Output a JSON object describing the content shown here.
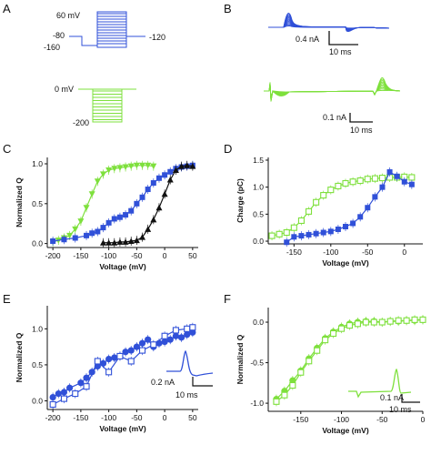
{
  "panels": {
    "A": {
      "label": "A",
      "blue": {
        "color": "#3050d8",
        "labels": [
          "60 mV",
          "-80",
          "-120",
          "-160"
        ]
      },
      "green": {
        "color": "#7ee03c",
        "labels": [
          "0 mV",
          "-200"
        ]
      }
    },
    "B": {
      "label": "B",
      "blue_scale": {
        "current": "0.4 nA",
        "time": "10 ms"
      },
      "green_scale": {
        "current": "0.1 nA",
        "time": "10 ms"
      }
    },
    "C": {
      "label": "C"
    },
    "D": {
      "label": "D"
    },
    "E": {
      "label": "E",
      "inset": {
        "current": "0.2 nA",
        "time": "10 ms"
      }
    },
    "F": {
      "label": "F",
      "inset": {
        "current": "0.1 nA",
        "time": "10 ms"
      }
    }
  },
  "colors": {
    "blue": "#3050d8",
    "green": "#7ee03c",
    "black": "#111111"
  },
  "chart_data": [
    {
      "id": "C",
      "type": "scatter",
      "xlabel": "Voltage (mV)",
      "ylabel": "Normalized Q",
      "xlim": [
        -210,
        60
      ],
      "ylim": [
        -0.05,
        1.08
      ],
      "xticks": [
        -200,
        -150,
        -100,
        -50,
        0,
        50
      ],
      "yticks": [
        0.0,
        0.5,
        1.0
      ],
      "xtick_labels": [
        "-200",
        "-150",
        "-100",
        "-50",
        "0",
        "50"
      ],
      "ytick_labels": [
        "0.0",
        "0.5",
        "1.0"
      ],
      "series": [
        {
          "color": "#7ee03c",
          "marker": "triangle-down",
          "x": [
            -200,
            -190,
            -180,
            -170,
            -160,
            -150,
            -140,
            -130,
            -120,
            -110,
            -100,
            -90,
            -80,
            -70,
            -60,
            -50,
            -40,
            -30,
            -20
          ],
          "y": [
            0.02,
            0.04,
            0.07,
            0.1,
            0.18,
            0.28,
            0.45,
            0.62,
            0.78,
            0.87,
            0.92,
            0.94,
            0.95,
            0.96,
            0.97,
            0.98,
            0.98,
            0.98,
            0.97
          ]
        },
        {
          "color": "#3050d8",
          "marker": "square",
          "x": [
            -200,
            -180,
            -160,
            -140,
            -130,
            -120,
            -110,
            -100,
            -90,
            -80,
            -70,
            -60,
            -50,
            -40,
            -30,
            -20,
            -10,
            0,
            10,
            20,
            30,
            40,
            50
          ],
          "y": [
            0.03,
            0.05,
            0.07,
            0.1,
            0.13,
            0.15,
            0.2,
            0.26,
            0.31,
            0.33,
            0.36,
            0.41,
            0.5,
            0.58,
            0.68,
            0.76,
            0.82,
            0.86,
            0.9,
            0.94,
            0.96,
            0.97,
            0.98
          ]
        },
        {
          "color": "#111111",
          "marker": "triangle-up",
          "x": [
            -110,
            -100,
            -90,
            -80,
            -70,
            -60,
            -50,
            -40,
            -30,
            -20,
            -10,
            0,
            10,
            20,
            30,
            40,
            50
          ],
          "y": [
            0.01,
            0.01,
            0.01,
            0.02,
            0.02,
            0.03,
            0.04,
            0.08,
            0.18,
            0.3,
            0.45,
            0.62,
            0.8,
            0.92,
            0.97,
            0.98,
            0.97
          ]
        }
      ]
    },
    {
      "id": "D",
      "type": "scatter",
      "xlabel": "Voltage (mV)",
      "ylabel": "Charge (pC)",
      "xlim": [
        -185,
        25
      ],
      "ylim": [
        -0.05,
        1.55
      ],
      "xticks": [
        -150,
        -100,
        -50,
        0
      ],
      "yticks": [
        0.0,
        0.5,
        1.0,
        1.5
      ],
      "xtick_labels": [
        "-150",
        "-100",
        "-50",
        "0"
      ],
      "ytick_labels": [
        "0.0",
        "0.5",
        "1.0",
        "1.5"
      ],
      "series": [
        {
          "color": "#7ee03c",
          "marker": "square-open",
          "x": [
            -180,
            -170,
            -160,
            -150,
            -140,
            -130,
            -120,
            -110,
            -100,
            -90,
            -80,
            -70,
            -60,
            -50,
            -40,
            -30,
            -20,
            -10,
            0,
            10
          ],
          "y": [
            0.1,
            0.13,
            0.16,
            0.25,
            0.38,
            0.55,
            0.72,
            0.85,
            0.95,
            1.02,
            1.07,
            1.1,
            1.12,
            1.15,
            1.16,
            1.17,
            1.18,
            1.18,
            1.19,
            1.18
          ]
        },
        {
          "color": "#3050d8",
          "marker": "square",
          "x": [
            -160,
            -150,
            -140,
            -130,
            -120,
            -110,
            -100,
            -90,
            -80,
            -70,
            -60,
            -50,
            -40,
            -30,
            -20,
            -10,
            0,
            10
          ],
          "y": [
            -0.02,
            0.08,
            0.1,
            0.12,
            0.14,
            0.16,
            0.18,
            0.22,
            0.27,
            0.33,
            0.45,
            0.62,
            0.82,
            1.0,
            1.28,
            1.2,
            1.1,
            1.05
          ]
        }
      ]
    },
    {
      "id": "E",
      "type": "scatter",
      "xlabel": "Voltage (mV)",
      "ylabel": "Normalized Q",
      "xlim": [
        -210,
        60
      ],
      "ylim": [
        -0.12,
        1.32
      ],
      "xticks": [
        -200,
        -150,
        -100,
        -50,
        0,
        50
      ],
      "yticks": [
        0.0,
        0.5,
        1.0
      ],
      "xtick_labels": [
        "-200",
        "-150",
        "-100",
        "-50",
        "0",
        "50"
      ],
      "ytick_labels": [
        "0.0",
        "0.5",
        "1.0"
      ],
      "series": [
        {
          "color": "#3050d8",
          "marker": "circle",
          "x": [
            -200,
            -190,
            -180,
            -170,
            -150,
            -140,
            -130,
            -120,
            -110,
            -100,
            -90,
            -80,
            -70,
            -60,
            -50,
            -40,
            -30,
            -20,
            -10,
            0,
            10,
            20,
            30,
            40,
            50
          ],
          "y": [
            0.05,
            0.1,
            0.12,
            0.18,
            0.25,
            0.32,
            0.4,
            0.48,
            0.52,
            0.58,
            0.6,
            0.62,
            0.68,
            0.7,
            0.75,
            0.8,
            0.85,
            0.75,
            0.8,
            0.82,
            0.85,
            0.9,
            0.88,
            0.92,
            0.95
          ]
        },
        {
          "color": "#3050d8",
          "marker": "square-open",
          "x": [
            -200,
            -180,
            -160,
            -140,
            -120,
            -100,
            -80,
            -60,
            -40,
            -20,
            0,
            20,
            40,
            50
          ],
          "y": [
            -0.05,
            0.03,
            0.1,
            0.2,
            0.55,
            0.4,
            0.62,
            0.55,
            0.7,
            0.78,
            0.9,
            0.98,
            1.0,
            1.02
          ]
        }
      ]
    },
    {
      "id": "F",
      "type": "scatter",
      "xlabel": "Voltage (mV)",
      "ylabel": "Normalized Q",
      "xlim": [
        -190,
        0
      ],
      "ylim": [
        -1.1,
        0.18
      ],
      "xticks": [
        -150,
        -100,
        -50,
        0
      ],
      "yticks": [
        -1.0,
        -0.5,
        0.0
      ],
      "xtick_labels": [
        "-150",
        "-100",
        "-50",
        "0"
      ],
      "ytick_labels": [
        "-1.0",
        "-0.5",
        "0.0"
      ],
      "series": [
        {
          "color": "#7ee03c",
          "marker": "circle",
          "x": [
            -180,
            -170,
            -160,
            -150,
            -140,
            -130,
            -120,
            -110,
            -100,
            -90,
            -80,
            -70,
            -60,
            -50,
            -40,
            -30,
            -20,
            -10,
            0
          ],
          "y": [
            -0.95,
            -0.85,
            -0.72,
            -0.6,
            -0.45,
            -0.32,
            -0.2,
            -0.12,
            -0.06,
            -0.02,
            0.0,
            0.01,
            0.01,
            0.0,
            0.01,
            0.01,
            0.02,
            0.02,
            0.03
          ]
        },
        {
          "color": "#7ee03c",
          "marker": "square-open",
          "x": [
            -180,
            -170,
            -160,
            -150,
            -140,
            -130,
            -120,
            -110,
            -100,
            -90,
            -80,
            -70,
            -60,
            -50,
            -40,
            -30,
            -20,
            -10,
            0
          ],
          "y": [
            -0.98,
            -0.9,
            -0.78,
            -0.62,
            -0.48,
            -0.35,
            -0.22,
            -0.14,
            -0.08,
            -0.04,
            -0.02,
            0.0,
            0.0,
            0.0,
            0.01,
            0.02,
            0.02,
            0.03,
            0.03
          ]
        }
      ]
    }
  ]
}
